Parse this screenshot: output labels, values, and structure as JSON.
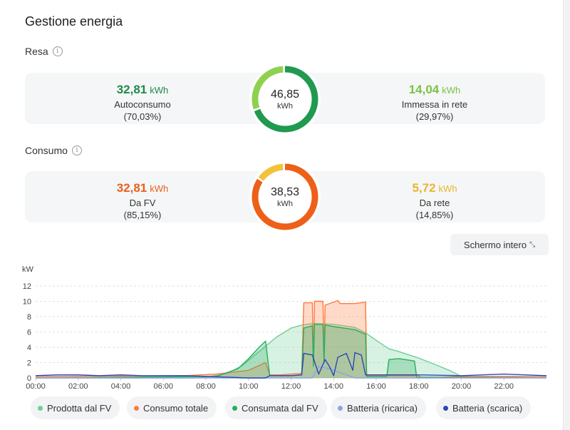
{
  "title": "Gestione energia",
  "resa": {
    "label": "Resa",
    "left": {
      "value": "32,81",
      "unit": "kWh",
      "label": "Autoconsumo",
      "pct": "(70,03%)",
      "color": "#1e8a4a"
    },
    "right": {
      "value": "14,04",
      "unit": "kWh",
      "label": "Immessa in rete",
      "pct": "(29,97%)",
      "color": "#7bc242"
    },
    "donut": {
      "value": "46,85",
      "unit": "kWh",
      "fraction": 0.7003,
      "main_color": "#1f9a4f",
      "rest_color": "#8fd14f"
    }
  },
  "consumo": {
    "label": "Consumo",
    "left": {
      "value": "32,81",
      "unit": "kWh",
      "label": "Da FV",
      "pct": "(85,15%)",
      "color": "#e8601c"
    },
    "right": {
      "value": "5,72",
      "unit": "kWh",
      "label": "Da rete",
      "pct": "(14,85%)",
      "color": "#e8b72e"
    },
    "donut": {
      "value": "38,53",
      "unit": "kWh",
      "fraction": 0.8515,
      "main_color": "#ee5f18",
      "rest_color": "#f3c23a"
    }
  },
  "fullscreen_label": "Schermo intero",
  "chart_data": {
    "type": "area",
    "ylabel": "kW",
    "ylim": [
      0,
      12
    ],
    "yticks": [
      0,
      2,
      4,
      6,
      8,
      10,
      12
    ],
    "xlim": [
      0,
      24
    ],
    "xticks": [
      "00:00",
      "02:00",
      "04:00",
      "06:00",
      "08:00",
      "10:00",
      "12:00",
      "14:00",
      "16:00",
      "18:00",
      "20:00",
      "22:00"
    ],
    "grid": true,
    "series": [
      {
        "name": "Prodotta dal FV",
        "color": "#6fcf97",
        "fill": true,
        "x": [
          0,
          7.5,
          8,
          9,
          9.7,
          10.3,
          11,
          11.3,
          12,
          12.5,
          13,
          14,
          15,
          15.5,
          16,
          16.6,
          17,
          18,
          19,
          19.5,
          20,
          24
        ],
        "y": [
          0,
          0,
          0.1,
          0.6,
          1.6,
          3,
          4.6,
          5.3,
          6.5,
          6.9,
          7.1,
          7,
          6.6,
          5.9,
          4.9,
          3.8,
          3.5,
          2.6,
          1.5,
          0.9,
          0.2,
          0
        ]
      },
      {
        "name": "Consumo totale",
        "color": "#ff7a3d",
        "fill": true,
        "x": [
          0,
          7,
          8.5,
          10,
          10.8,
          11,
          11.5,
          12,
          12.5,
          12.6,
          13,
          13.05,
          13.1,
          13.5,
          13.55,
          13.6,
          14,
          14.2,
          14.3,
          15,
          15.5,
          15.55,
          16,
          17,
          18,
          18.1,
          19,
          20,
          24
        ],
        "y": [
          0.2,
          0.3,
          0.5,
          1,
          2,
          0.4,
          0.4,
          0.5,
          0.6,
          9.8,
          9.8,
          2,
          10,
          10,
          3,
          9.5,
          9.9,
          10.1,
          9.7,
          9.7,
          9.9,
          0.3,
          0.3,
          0.3,
          0.3,
          0.1,
          0.1,
          0.2,
          0.2
        ]
      },
      {
        "name": "Consumata dal FV",
        "color": "#27ae60",
        "fill": true,
        "x": [
          0,
          8.5,
          9.5,
          10,
          10.5,
          10.8,
          11,
          12,
          12.5,
          12.6,
          13,
          13.05,
          13.1,
          13.5,
          13.55,
          13.6,
          14,
          15,
          15.5,
          15.55,
          16,
          16.5,
          16.6,
          17,
          17.1,
          17.8,
          17.9,
          24
        ],
        "y": [
          0,
          0.2,
          1.2,
          2.5,
          4,
          4.8,
          0.3,
          0.3,
          0.4,
          6.5,
          6.8,
          1.5,
          7,
          7,
          2,
          6.9,
          6.7,
          6.3,
          5.7,
          0.2,
          0.2,
          0.2,
          2.4,
          2.5,
          2.5,
          2.2,
          0.1,
          0
        ]
      },
      {
        "name": "Batteria (ricarica)",
        "color": "#8aa4e8",
        "fill": false,
        "x": [
          0,
          12,
          13,
          13.3,
          13.8,
          14.2,
          15,
          24
        ],
        "y": [
          0,
          0,
          0,
          1.5,
          1.2,
          0.8,
          0,
          0
        ]
      },
      {
        "name": "Batteria (scarica)",
        "color": "#2d46b9",
        "fill": false,
        "x": [
          0,
          1,
          2,
          3,
          4,
          5,
          6,
          7,
          8,
          9,
          10,
          10.5,
          10.8,
          11,
          12,
          12.5,
          12.6,
          13,
          13.3,
          13.6,
          13.8,
          14,
          14.2,
          14.6,
          14.9,
          15,
          15.3,
          15.5,
          16,
          18,
          20,
          22,
          24
        ],
        "y": [
          0.3,
          0.4,
          0.4,
          0.3,
          0.4,
          0.3,
          0.3,
          0.3,
          0.2,
          0.1,
          0,
          0,
          0,
          0.3,
          0.3,
          0.4,
          3.2,
          3,
          0.5,
          2.4,
          1.5,
          0.3,
          2.7,
          3.2,
          1,
          3.3,
          3,
          0.4,
          0.4,
          0.4,
          0.3,
          0.5,
          0.3
        ]
      }
    ]
  }
}
